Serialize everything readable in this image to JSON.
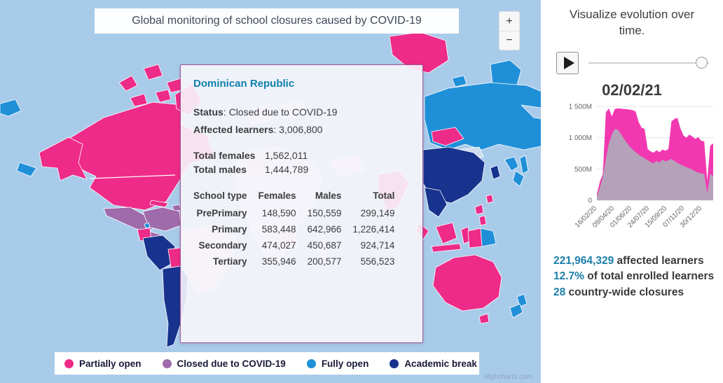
{
  "map": {
    "title": "Global monitoring of school closures caused by COVID-19",
    "zoom_in_label": "+",
    "zoom_out_label": "−",
    "attribution": "Highcharts.com",
    "ocean_color": "#a9cbea",
    "legend": [
      {
        "label": "Partially open",
        "color": "#ee2b88"
      },
      {
        "label": "Closed due to COVID-19",
        "color": "#9f6bab"
      },
      {
        "label": "Fully open",
        "color": "#1f90d8"
      },
      {
        "label": "Academic break",
        "color": "#17338d"
      }
    ]
  },
  "tooltip": {
    "country": "Dominican Republic",
    "status_label": "Status",
    "status_value": "Closed due to COVID-19",
    "affected_label": "Affected learners",
    "affected_value": "3,006,800",
    "totals": [
      {
        "label": "Total females",
        "value": "1,562,011"
      },
      {
        "label": "Total males",
        "value": "1,444,789"
      }
    ],
    "table": {
      "headers": [
        "School type",
        "Females",
        "Males",
        "Total"
      ],
      "rows": [
        [
          "PrePrimary",
          "148,590",
          "150,559",
          "299,149"
        ],
        [
          "Primary",
          "583,448",
          "642,966",
          "1,226,414"
        ],
        [
          "Secondary",
          "474,027",
          "450,687",
          "924,714"
        ],
        [
          "Tertiary",
          "355,946",
          "200,577",
          "556,523"
        ]
      ]
    }
  },
  "sidebar": {
    "title": "Visualize evolution over time.",
    "date": "02/02/21",
    "accent": "#1b7fa7",
    "stats": [
      {
        "value": "221,964,329",
        "label": "affected learners"
      },
      {
        "value": "12.7%",
        "label": "of total enrolled learners"
      },
      {
        "value": "28",
        "label": "country-wide closures"
      }
    ]
  },
  "chart_data": {
    "type": "area",
    "title": "02/02/21",
    "xlabel": "",
    "ylabel": "",
    "ylim": [
      0,
      1500
    ],
    "grid": true,
    "legend_position": "none",
    "y_ticks": [
      {
        "label": "1 500M",
        "value": 1500
      },
      {
        "label": "1 000M",
        "value": 1000
      },
      {
        "label": "500M",
        "value": 500
      },
      {
        "label": "0",
        "value": 0
      }
    ],
    "x_tick_labels": [
      "16/02/20",
      "09/04/20",
      "01/06/20",
      "24/07/20",
      "15/09/20",
      "07/11/20",
      "30/12/20"
    ],
    "x_tick_day_offsets": [
      0,
      53,
      106,
      159,
      212,
      265,
      318
    ],
    "x_total_days": 352,
    "series": [
      {
        "name": "series-pink",
        "color": "#f238b0",
        "values": [
          100,
          300,
          420,
          1400,
          1470,
          1340,
          1460,
          1470,
          1465,
          1460,
          1455,
          1450,
          1440,
          1420,
          1250,
          1160,
          1140,
          820,
          780,
          760,
          800,
          770,
          810,
          790,
          820,
          1260,
          1300,
          1320,
          1150,
          1040,
          1000,
          1050,
          1020,
          980,
          1010,
          950,
          940,
          310,
          870,
          910
        ]
      },
      {
        "name": "series-mauve",
        "color": "#b5a2ba",
        "values": [
          60,
          200,
          380,
          650,
          900,
          1050,
          1140,
          1130,
          1060,
          990,
          920,
          860,
          810,
          770,
          730,
          700,
          670,
          640,
          610,
          590,
          630,
          600,
          650,
          620,
          640,
          660,
          630,
          600,
          570,
          550,
          530,
          510,
          490,
          460,
          440,
          430,
          420,
          110,
          420,
          390
        ]
      }
    ]
  }
}
